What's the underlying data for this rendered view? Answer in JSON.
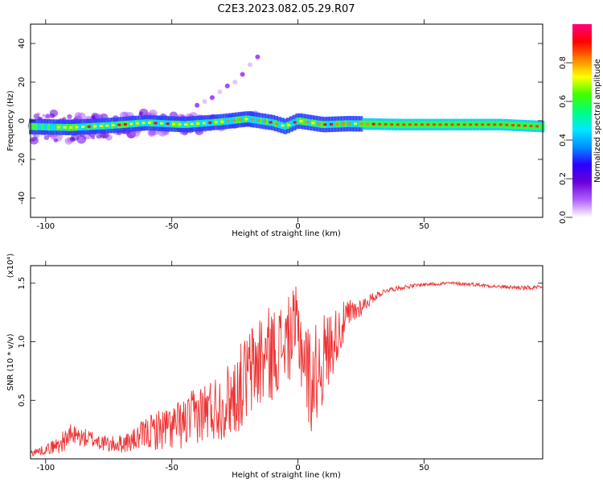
{
  "title": "C2E3.2023.082.05.29.R07",
  "colors": {
    "signal": "#ee3333",
    "frame": "#000000"
  },
  "chart_data": [
    {
      "type": "heatmap",
      "xlabel": "Height of straight line (km)",
      "ylabel": "Frequency (Hz)",
      "xlim": [
        -106,
        97
      ],
      "ylim": [
        -50,
        50
      ],
      "xticks": [
        -100,
        -50,
        0,
        50
      ],
      "yticks": [
        -40,
        -20,
        0,
        20,
        40
      ],
      "colorbar": {
        "label": "Normalized spectral amplitude",
        "range": [
          0,
          1
        ],
        "ticks": [
          0.0,
          0.2,
          0.4,
          0.6,
          0.8
        ],
        "colormap": [
          "#ffffff",
          "#b060ff",
          "#6a00d8",
          "#2a00ff",
          "#0090ff",
          "#00e8ff",
          "#00ff80",
          "#40ff00",
          "#ffff00",
          "#ff8000",
          "#ff0000",
          "#ff0080"
        ]
      },
      "signal_track": {
        "x": [
          -106,
          -90,
          -75,
          -60,
          -45,
          -30,
          -20,
          -10,
          -5,
          0,
          10,
          20,
          40,
          60,
          80,
          97
        ],
        "freq": [
          -3,
          -3.5,
          -2.5,
          -1,
          -2,
          -0.5,
          1,
          -1,
          -3,
          0,
          -2,
          -1.5,
          -2,
          -2,
          -2,
          -3
        ]
      },
      "scatter_branch": {
        "x": [
          -40,
          -37,
          -34,
          -31,
          -28,
          -25,
          -22,
          -19,
          -16
        ],
        "freq": [
          8,
          10,
          12,
          15,
          18,
          20,
          24,
          29,
          33
        ]
      }
    },
    {
      "type": "line",
      "xlabel": "Height of straight line (km)",
      "ylabel": "SNR (10 * v/v)",
      "y_multiplier": "(x10⁴)",
      "xlim": [
        -106,
        97
      ],
      "ylim": [
        0,
        1.65
      ],
      "xticks": [
        -100,
        -50,
        0,
        50
      ],
      "yticks": [
        0.5,
        1.0,
        1.5
      ],
      "ytick_labels": [
        "0.5",
        "1.0",
        "1.5"
      ],
      "series": [
        {
          "x": [
            -106,
            -100,
            -95,
            -90,
            -85,
            -80,
            -75,
            -70,
            -65,
            -60,
            -55,
            -50,
            -45,
            -40,
            -35,
            -30,
            -25,
            -20,
            -15,
            -10,
            -5,
            0,
            5,
            10,
            15,
            20,
            25,
            30,
            35,
            40,
            50,
            60,
            70,
            80,
            90,
            97
          ],
          "values": [
            0.05,
            0.08,
            0.12,
            0.2,
            0.18,
            0.16,
            0.12,
            0.13,
            0.16,
            0.22,
            0.25,
            0.27,
            0.3,
            0.38,
            0.42,
            0.46,
            0.55,
            0.7,
            0.85,
            0.9,
            1.0,
            1.1,
            0.65,
            0.85,
            1.05,
            1.22,
            1.3,
            1.38,
            1.44,
            1.46,
            1.49,
            1.5,
            1.49,
            1.47,
            1.46,
            1.46
          ],
          "amplitude": [
            0.03,
            0.04,
            0.08,
            0.1,
            0.08,
            0.08,
            0.07,
            0.08,
            0.1,
            0.14,
            0.18,
            0.2,
            0.22,
            0.25,
            0.28,
            0.3,
            0.35,
            0.4,
            0.45,
            0.4,
            0.35,
            0.4,
            0.45,
            0.4,
            0.25,
            0.15,
            0.08,
            0.04,
            0.02,
            0.02,
            0.015,
            0.015,
            0.015,
            0.015,
            0.02,
            0.02
          ]
        }
      ]
    }
  ]
}
